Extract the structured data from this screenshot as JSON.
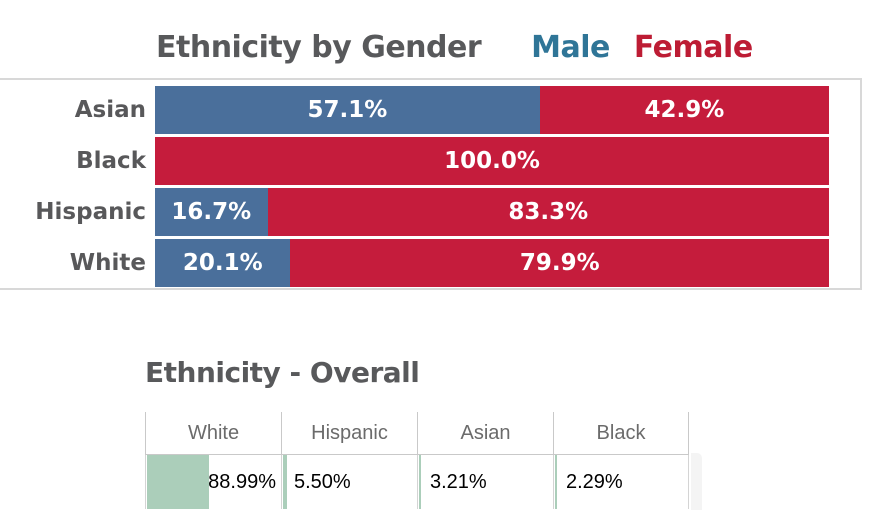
{
  "header": {
    "title": "Ethnicity by Gender",
    "legend": [
      {
        "label": "Male",
        "text_color": "#2f7597"
      },
      {
        "label": "Female",
        "text_color": "#bd1c34"
      }
    ]
  },
  "overall": {
    "title": "Ethnicity - Overall"
  },
  "colors": {
    "male_bar": "#4a6f9b",
    "female_bar": "#c51c3c",
    "databar_green": "#abceba",
    "chart_border": "#d8d8d8",
    "title_gray": "#58595b"
  },
  "chart_data": [
    {
      "type": "bar",
      "subtype": "horizontal-stacked-100pct",
      "title": "Ethnicity by Gender",
      "categories": [
        "Asian",
        "Black",
        "Hispanic",
        "White"
      ],
      "series": [
        {
          "name": "Male",
          "color": "#4a6f9b",
          "values": [
            57.1,
            0.0,
            16.7,
            20.1
          ]
        },
        {
          "name": "Female",
          "color": "#c51c3c",
          "values": [
            42.9,
            100.0,
            83.3,
            79.9
          ]
        }
      ],
      "data_labels": [
        "57.1%",
        "42.9%",
        "100.0%",
        "16.7%",
        "83.3%",
        "20.1%",
        "79.9%"
      ],
      "value_format": "percent-one-decimal",
      "xlim": [
        0,
        100
      ],
      "legend_position": "top-right-inline-with-title",
      "grid": false
    },
    {
      "type": "table",
      "title": "Ethnicity - Overall",
      "columns": [
        "White",
        "Hispanic",
        "Asian",
        "Black"
      ],
      "values": [
        {
          "text": "88.99%",
          "value": 88.99
        },
        {
          "text": "5.50%",
          "value": 5.5
        },
        {
          "text": "3.21%",
          "value": 3.21
        },
        {
          "text": "2.29%",
          "value": 2.29
        }
      ],
      "databar_color": "#abceba"
    }
  ]
}
